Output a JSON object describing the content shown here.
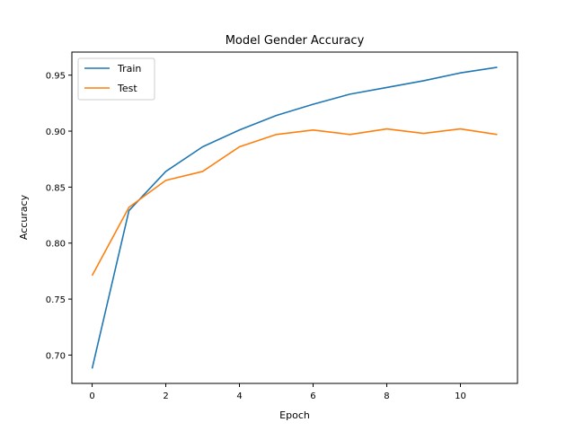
{
  "chart_data": {
    "type": "line",
    "title": "Model Gender Accuracy",
    "xlabel": "Epoch",
    "ylabel": "Accuracy",
    "xlim": [
      -0.55,
      11.55
    ],
    "ylim": [
      0.6747,
      0.9706
    ],
    "xticks": [
      0,
      2,
      4,
      6,
      8,
      10
    ],
    "yticks": [
      0.7,
      0.75,
      0.8,
      0.85,
      0.9,
      0.95
    ],
    "xtick_labels": [
      "0",
      "2",
      "4",
      "6",
      "8",
      "10"
    ],
    "ytick_labels": [
      "0.70",
      "0.75",
      "0.80",
      "0.85",
      "0.90",
      "0.95"
    ],
    "grid": false,
    "legend_position": "top-left",
    "x": [
      0,
      1,
      2,
      3,
      4,
      5,
      6,
      7,
      8,
      9,
      10,
      11
    ],
    "series": [
      {
        "name": "Train",
        "color": "#1f77b4",
        "values": [
          0.688,
          0.829,
          0.864,
          0.886,
          0.901,
          0.914,
          0.924,
          0.933,
          0.939,
          0.945,
          0.952,
          0.957
        ]
      },
      {
        "name": "Test",
        "color": "#ff7f0e",
        "values": [
          0.771,
          0.832,
          0.856,
          0.864,
          0.886,
          0.897,
          0.901,
          0.897,
          0.902,
          0.898,
          0.902,
          0.897
        ]
      }
    ]
  }
}
